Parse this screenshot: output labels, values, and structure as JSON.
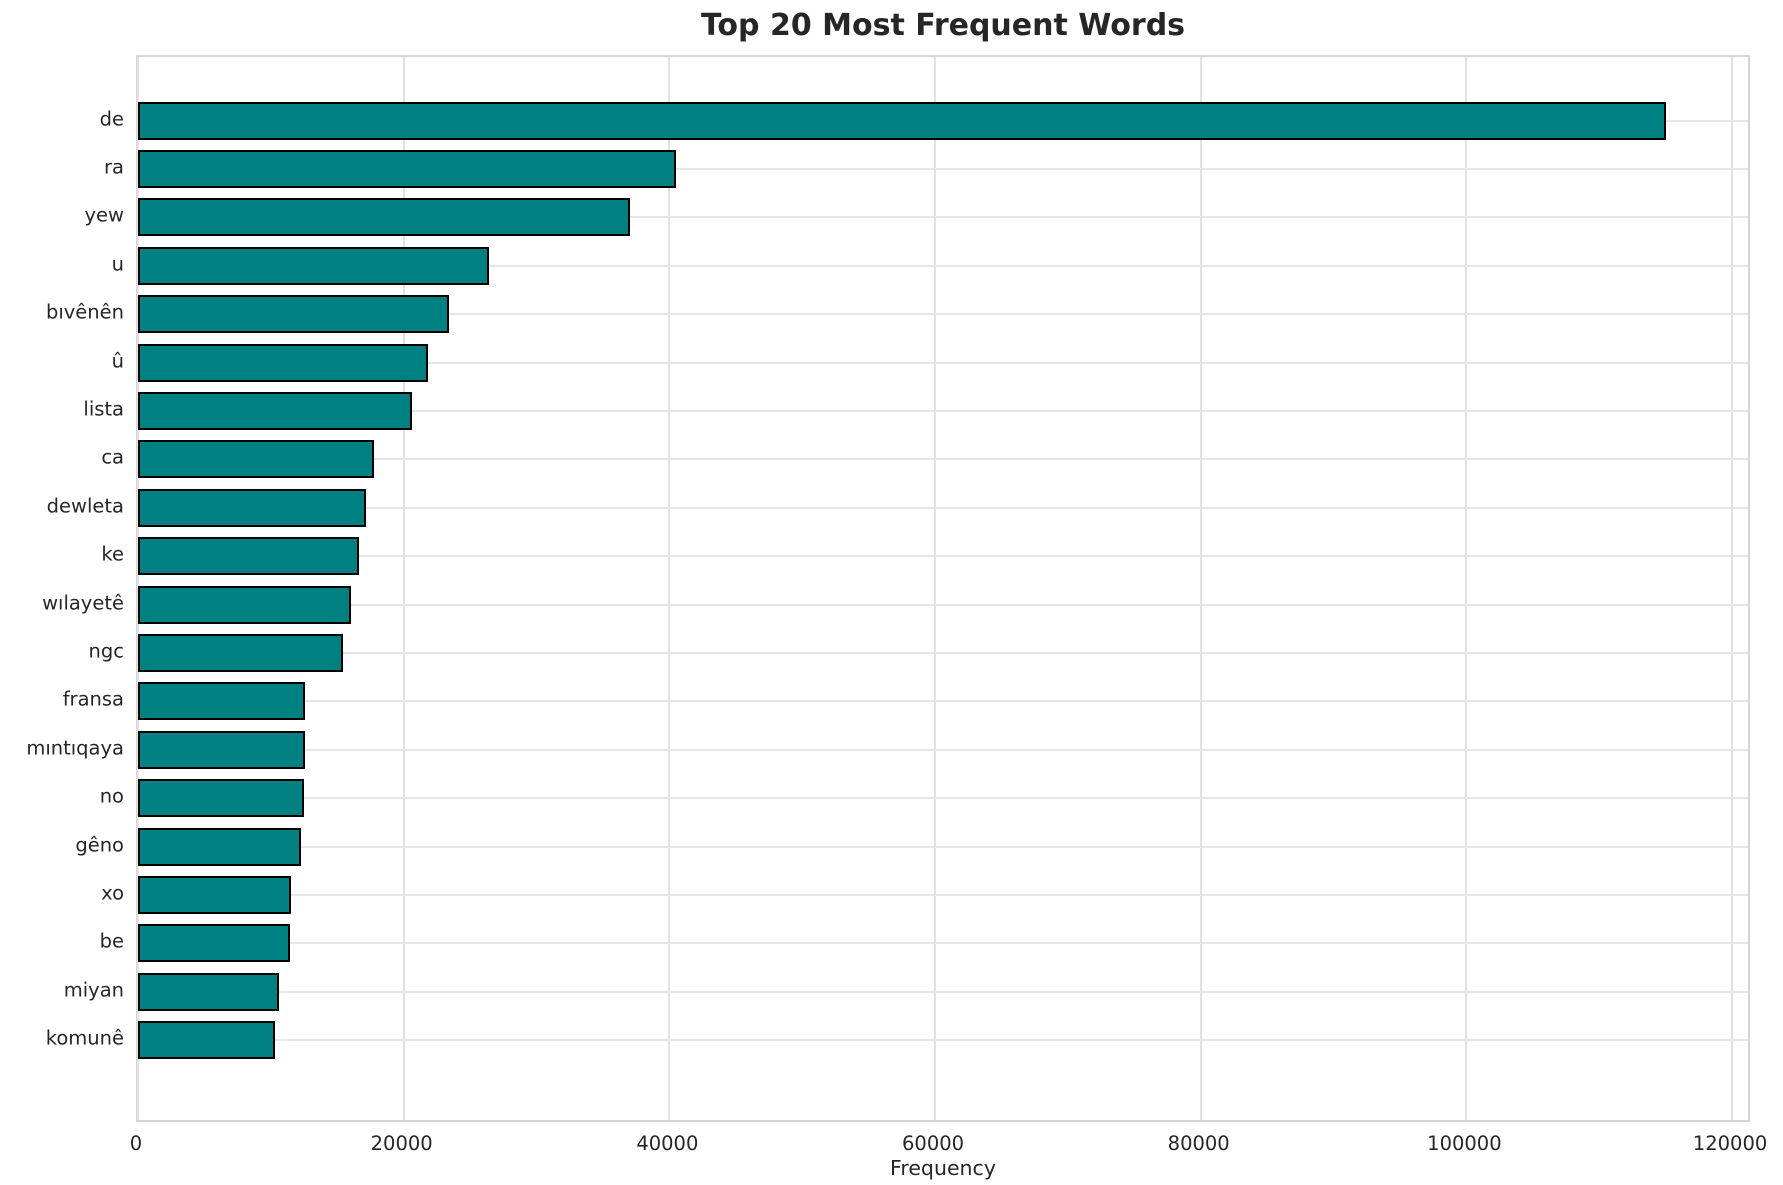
{
  "figure": {
    "background": "#ffffff",
    "text_color": "#262626",
    "grid_color": "#e2e2e2",
    "frame_color": "#d4d4d4",
    "bar_color": "#008080",
    "bar_edge_color": "#000000"
  },
  "chart_data": {
    "type": "bar",
    "orientation": "horizontal",
    "title": "Top 20 Most Frequent Words",
    "xlabel": "Frequency",
    "ylabel": "",
    "grid": true,
    "legend": null,
    "categories": [
      "de",
      "ra",
      "yew",
      "u",
      "bıvênên",
      "û",
      "lista",
      "ca",
      "dewleta",
      "ke",
      "wılayetê",
      "ngc",
      "fransa",
      "mıntıqaya",
      "no",
      "gêno",
      "xo",
      "be",
      "miyan",
      "komunê"
    ],
    "values": [
      115000,
      40500,
      37000,
      26400,
      23400,
      21800,
      20600,
      17800,
      17200,
      16600,
      16000,
      15400,
      12600,
      12550,
      12500,
      12250,
      11500,
      11450,
      10600,
      10300
    ],
    "xticks": [
      0,
      20000,
      40000,
      60000,
      80000,
      100000,
      120000
    ],
    "xtick_labels": [
      "0",
      "20000",
      "40000",
      "60000",
      "80000",
      "100000",
      "120000"
    ],
    "xlim": [
      0,
      121500
    ]
  }
}
